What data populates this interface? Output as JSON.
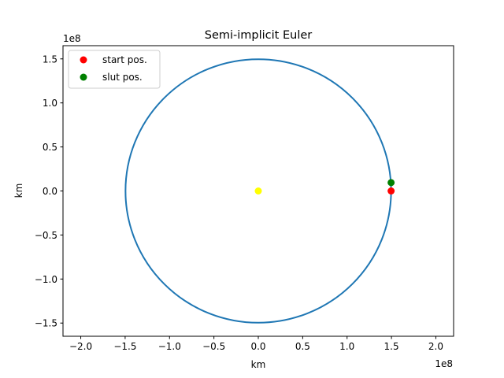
{
  "chart_data": {
    "type": "scatter",
    "title": "Semi-implicit Euler",
    "xlabel": "km",
    "ylabel": "km",
    "x_offset_label": "1e8",
    "y_offset_label": "1e8",
    "xlim": [
      -2.2,
      2.2
    ],
    "ylim": [
      -1.65,
      1.65
    ],
    "x_ticks": [
      -2.0,
      -1.5,
      -1.0,
      -0.5,
      0.0,
      0.5,
      1.0,
      1.5,
      2.0
    ],
    "x_tick_labels": [
      "−2.0",
      "−1.5",
      "−1.0",
      "−0.5",
      "0.0",
      "0.5",
      "1.0",
      "1.5",
      "2.0"
    ],
    "y_ticks": [
      -1.5,
      -1.0,
      -0.5,
      0.0,
      0.5,
      1.0,
      1.5
    ],
    "y_tick_labels": [
      "−1.5",
      "−1.0",
      "−0.5",
      "0.0",
      "0.5",
      "1.0",
      "1.5"
    ],
    "grid": false,
    "legend_position": "upper-left",
    "orbit": {
      "shape": "circle",
      "center": [
        0,
        0
      ],
      "radius": 1.496,
      "color": "#1f77b4"
    },
    "sun": {
      "x": 0,
      "y": 0,
      "color": "#ffff00"
    },
    "points": [
      {
        "name": "start pos.",
        "x": 1.496,
        "y": 0.0,
        "color": "#ff0000"
      },
      {
        "name": "slut pos.",
        "x": 1.496,
        "y": 0.095,
        "color": "#008000"
      }
    ]
  }
}
